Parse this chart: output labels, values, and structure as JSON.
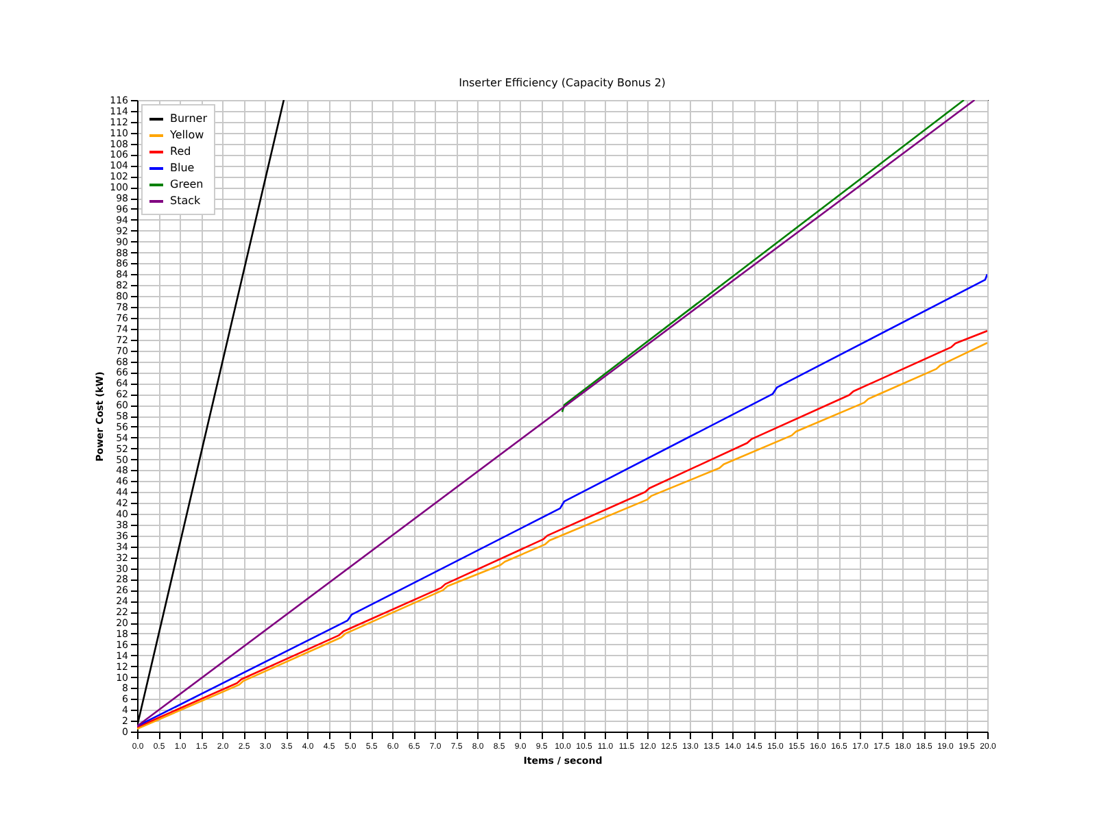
{
  "chart_data": {
    "type": "line",
    "title": "Inserter Efficiency (Capacity Bonus 2)",
    "xlabel": "Items / second",
    "ylabel": "Power Cost (kW)",
    "xlim": [
      0,
      20
    ],
    "ylim": [
      0,
      116
    ],
    "xticks": [
      {
        "value": 0,
        "label": "0.0"
      },
      {
        "value": 0.5,
        "label": "0.5"
      },
      {
        "value": 1,
        "label": "1.0"
      },
      {
        "value": 1.5,
        "label": "1.5"
      },
      {
        "value": 2,
        "label": "2.0"
      },
      {
        "value": 2.5,
        "label": "2.5"
      },
      {
        "value": 3,
        "label": "3.0"
      },
      {
        "value": 3.5,
        "label": "3.5"
      },
      {
        "value": 4,
        "label": "4.0"
      },
      {
        "value": 4.5,
        "label": "4.5"
      },
      {
        "value": 5,
        "label": "5.0"
      },
      {
        "value": 5.5,
        "label": "5.5"
      },
      {
        "value": 6,
        "label": "6.0"
      },
      {
        "value": 6.5,
        "label": "6.5"
      },
      {
        "value": 7,
        "label": "7.0"
      },
      {
        "value": 7.5,
        "label": "7.5"
      },
      {
        "value": 8,
        "label": "8.0"
      },
      {
        "value": 8.5,
        "label": "8.5"
      },
      {
        "value": 9,
        "label": "9.0"
      },
      {
        "value": 9.5,
        "label": "9.5"
      },
      {
        "value": 10,
        "label": "10.0"
      },
      {
        "value": 10.5,
        "label": "10.5"
      },
      {
        "value": 11,
        "label": "11.0"
      },
      {
        "value": 11.5,
        "label": "11.5"
      },
      {
        "value": 12,
        "label": "12.0"
      },
      {
        "value": 12.5,
        "label": "12.5"
      },
      {
        "value": 13,
        "label": "13.0"
      },
      {
        "value": 13.5,
        "label": "13.5"
      },
      {
        "value": 14,
        "label": "14.0"
      },
      {
        "value": 14.5,
        "label": "14.5"
      },
      {
        "value": 15,
        "label": "15.0"
      },
      {
        "value": 15.5,
        "label": "15.5"
      },
      {
        "value": 16,
        "label": "16.0"
      },
      {
        "value": 16.5,
        "label": "16.5"
      },
      {
        "value": 17,
        "label": "17.0"
      },
      {
        "value": 17.5,
        "label": "17.5"
      },
      {
        "value": 18,
        "label": "18.0"
      },
      {
        "value": 18.5,
        "label": "18.5"
      },
      {
        "value": 19,
        "label": "19.0"
      },
      {
        "value": 19.5,
        "label": "19.5"
      },
      {
        "value": 20,
        "label": "20.0"
      }
    ],
    "yticks": [
      0,
      2,
      4,
      6,
      8,
      10,
      12,
      14,
      16,
      18,
      20,
      22,
      24,
      26,
      28,
      30,
      32,
      34,
      36,
      38,
      40,
      42,
      44,
      46,
      48,
      50,
      52,
      54,
      56,
      58,
      60,
      62,
      64,
      66,
      68,
      70,
      72,
      74,
      76,
      78,
      80,
      82,
      84,
      86,
      88,
      90,
      92,
      94,
      96,
      98,
      100,
      102,
      104,
      106,
      108,
      110,
      112,
      114,
      116
    ],
    "grid": true,
    "legend": "top left",
    "series": [
      {
        "name": "Burner",
        "color": "#000000",
        "x": [
          0,
          3.45
        ],
        "values": [
          1,
          116
        ]
      },
      {
        "name": "Yellow",
        "color": "#ffa500",
        "x": [
          0,
          2.4,
          2.5,
          4.8,
          4.9,
          7.2,
          7.3,
          8.55,
          8.65,
          9.6,
          9.7,
          12,
          12.1,
          13.7,
          13.8,
          15.4,
          15.5,
          17.1,
          17.2,
          18.8,
          18.9,
          20
        ],
        "values": [
          0.5,
          8.6,
          9.3,
          17.3,
          18,
          26,
          26.7,
          30.6,
          31.2,
          34.4,
          35.1,
          42.6,
          43.3,
          48.4,
          49.1,
          54.4,
          55.1,
          60.4,
          61.1,
          66.6,
          67.3,
          71.4
        ]
      },
      {
        "name": "Red",
        "color": "#ff0000",
        "x": [
          0,
          2.35,
          2.45,
          4.75,
          4.85,
          7.15,
          7.25,
          9.55,
          9.65,
          11.95,
          12.05,
          14.35,
          14.45,
          16.75,
          16.85,
          19.15,
          19.25,
          20
        ],
        "values": [
          0.8,
          8.9,
          9.6,
          17.7,
          18.4,
          26.4,
          27.1,
          35.3,
          36,
          44,
          44.7,
          53,
          53.7,
          61.8,
          62.5,
          70.6,
          71.3,
          73.6
        ]
      },
      {
        "name": "Blue",
        "color": "#0000ff",
        "x": [
          0,
          4.95,
          5.05,
          9.95,
          10.05,
          14.95,
          15.05,
          19.95,
          20
        ],
        "values": [
          1,
          20.4,
          21.5,
          41,
          42.3,
          62,
          63.2,
          83,
          84
        ]
      },
      {
        "name": "Green",
        "color": "#008000",
        "x": [
          10,
          10.05,
          19.45
        ],
        "values": [
          58.7,
          60,
          116
        ]
      },
      {
        "name": "Stack",
        "color": "#800080",
        "x": [
          0,
          19.7
        ],
        "values": [
          1,
          116
        ]
      }
    ]
  }
}
